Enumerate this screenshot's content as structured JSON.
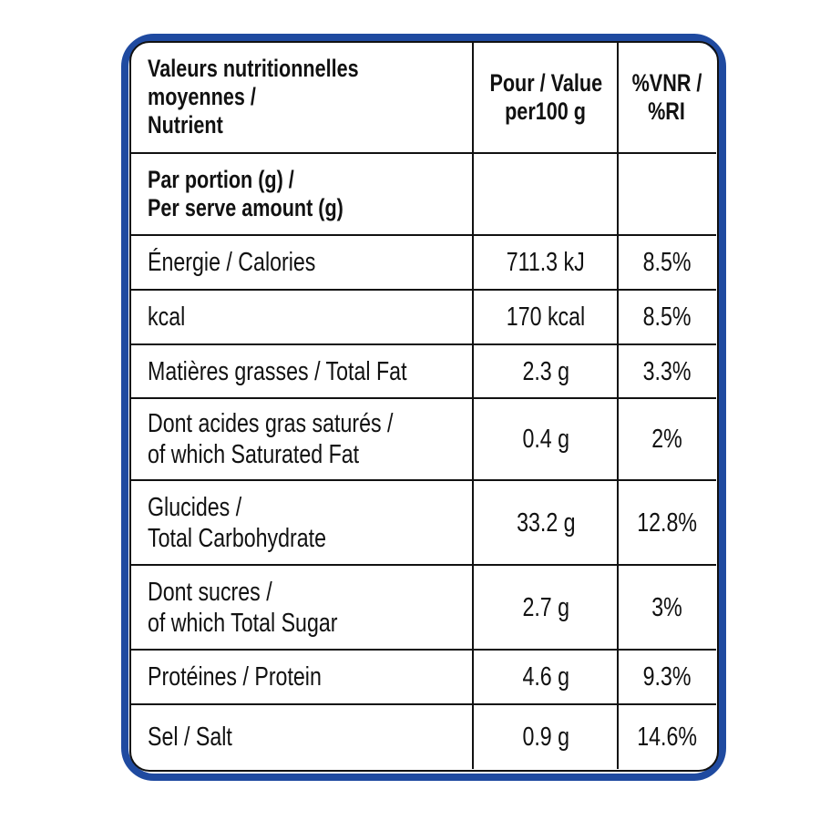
{
  "table": {
    "header": {
      "nutrient": [
        "Valeurs nutritionnelles",
        "moyennes /",
        "Nutrient"
      ],
      "per100g": [
        "Pour / Value",
        "per100 g"
      ],
      "ri": [
        "%VNR /",
        "%RI"
      ]
    },
    "rows": [
      {
        "nutrient": [
          "Par portion (g) /",
          "Per serve amount (g)"
        ]
      },
      {
        "nutrient": [
          "Énergie / Calories"
        ],
        "per100g": [
          "711.3 kJ"
        ],
        "ri": [
          "8.5%"
        ]
      },
      {
        "nutrient": [
          "kcal"
        ],
        "per100g": [
          "170 kcal"
        ],
        "ri": [
          "8.5%"
        ]
      },
      {
        "nutrient": [
          "Matières grasses / Total Fat"
        ],
        "per100g": [
          "2.3 g"
        ],
        "ri": [
          "3.3%"
        ]
      },
      {
        "nutrient": [
          "Dont acides gras saturés /",
          "of which Saturated Fat"
        ],
        "per100g": [
          "0.4 g"
        ],
        "ri": [
          "2%"
        ]
      },
      {
        "nutrient": [
          "Glucides /",
          "Total Carbohydrate"
        ],
        "per100g": [
          "33.2 g"
        ],
        "ri": [
          "12.8%"
        ]
      },
      {
        "nutrient": [
          "Dont sucres /",
          "of which Total Sugar"
        ],
        "per100g": [
          "2.7 g"
        ],
        "ri": [
          "3%"
        ]
      },
      {
        "nutrient": [
          "Protéines / Protein"
        ],
        "per100g": [
          "4.6 g"
        ],
        "ri": [
          "9.3%"
        ]
      },
      {
        "nutrient": [
          "Sel / Salt"
        ],
        "per100g": [
          "0.9 g"
        ],
        "ri": [
          "14.6%"
        ]
      }
    ]
  }
}
